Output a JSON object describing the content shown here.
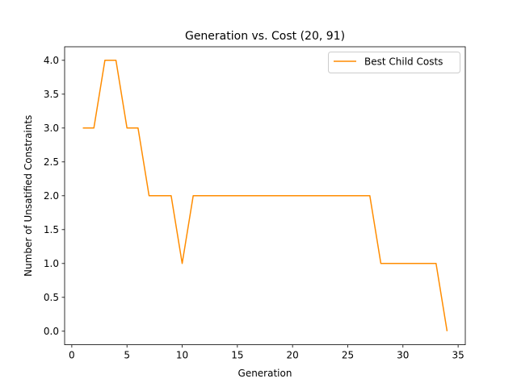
{
  "chart_data": {
    "type": "line",
    "title": "Generation vs. Cost (20, 91)",
    "xlabel": "Generation",
    "ylabel": "Number of Unsatified Constraints",
    "xlim": [
      -0.65,
      35.65
    ],
    "ylim": [
      -0.2,
      4.2
    ],
    "xticks": [
      0,
      5,
      10,
      15,
      20,
      25,
      30,
      35
    ],
    "yticks": [
      0.0,
      0.5,
      1.0,
      1.5,
      2.0,
      2.5,
      3.0,
      3.5,
      4.0
    ],
    "xtick_labels": [
      "0",
      "5",
      "10",
      "15",
      "20",
      "25",
      "30",
      "35"
    ],
    "ytick_labels": [
      "0.0",
      "0.5",
      "1.0",
      "1.5",
      "2.0",
      "2.5",
      "3.0",
      "3.5",
      "4.0"
    ],
    "grid": false,
    "legend_position": "top-right",
    "series": [
      {
        "name": "Best Child Costs",
        "color": "#ff8c00",
        "x": [
          1,
          2,
          3,
          4,
          5,
          6,
          7,
          8,
          9,
          10,
          11,
          12,
          13,
          14,
          15,
          16,
          17,
          18,
          19,
          20,
          21,
          22,
          23,
          24,
          25,
          26,
          27,
          28,
          29,
          30,
          31,
          32,
          33,
          34
        ],
        "y": [
          3,
          3,
          4,
          4,
          3,
          3,
          2,
          2,
          2,
          1,
          2,
          2,
          2,
          2,
          2,
          2,
          2,
          2,
          2,
          2,
          2,
          2,
          2,
          2,
          2,
          2,
          2,
          1,
          1,
          1,
          1,
          1,
          1,
          0
        ]
      }
    ]
  }
}
